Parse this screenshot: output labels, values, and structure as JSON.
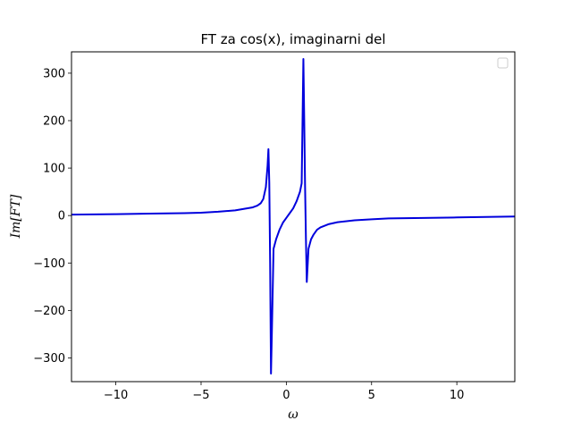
{
  "chart_data": {
    "type": "line",
    "title": "FT za cos(x), imaginarni del",
    "xlabel": "ω",
    "ylabel": "Im[FT]",
    "xlim": [
      -12.6,
      13.4
    ],
    "ylim": [
      -350,
      345
    ],
    "xticks": [
      -10,
      -5,
      0,
      5,
      10
    ],
    "xtick_labels": [
      "−10",
      "−5",
      "0",
      "5",
      "10"
    ],
    "yticks": [
      -300,
      -200,
      -100,
      0,
      100,
      200,
      300
    ],
    "ytick_labels": [
      "−300",
      "−200",
      "−100",
      "0",
      "100",
      "200",
      "300"
    ],
    "grid": false,
    "legend": {
      "placement": "top-right",
      "entries": []
    },
    "series": [
      {
        "color": "#0000dd",
        "x": [
          -12.6,
          -10,
          -8,
          -6,
          -5,
          -4,
          -3,
          -2.5,
          -2,
          -1.7,
          -1.5,
          -1.35,
          -1.2,
          -1.1,
          -1.05,
          -1.0,
          -0.95,
          -0.9,
          -0.85,
          -0.75,
          -0.6,
          -0.4,
          -0.2,
          0,
          0.2,
          0.4,
          0.6,
          0.8,
          0.9,
          1.0,
          1.05,
          1.1,
          1.15,
          1.2,
          1.3,
          1.45,
          1.6,
          1.8,
          2.0,
          2.5,
          3,
          4,
          5,
          6,
          8,
          10,
          13.4
        ],
        "y": [
          2,
          3,
          4,
          5,
          6,
          8,
          11,
          14,
          17,
          21,
          26,
          35,
          60,
          105,
          140,
          70,
          -100,
          -333,
          -250,
          -70,
          -50,
          -30,
          -15,
          -5,
          5,
          15,
          30,
          50,
          68,
          330,
          200,
          60,
          -50,
          -140,
          -70,
          -50,
          -40,
          -30,
          -25,
          -18,
          -14,
          -10,
          -8,
          -6,
          -5,
          -4,
          -2
        ]
      }
    ]
  }
}
